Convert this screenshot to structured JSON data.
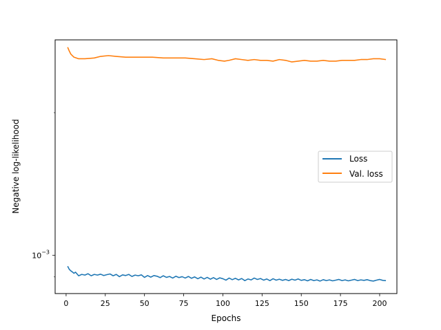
{
  "chart_data": {
    "type": "line",
    "xlabel": "Epochs",
    "ylabel": "Negative log-likelihood",
    "y_scale": "log",
    "xlim": [
      -7,
      211
    ],
    "ylim": [
      0.00083,
      0.00285
    ],
    "x_ticks": [
      0,
      25,
      50,
      75,
      100,
      125,
      150,
      175,
      200
    ],
    "y_ticks": [
      {
        "value": 0.001,
        "base": "10",
        "exponent": "−3"
      }
    ],
    "legend": {
      "location": "center-right"
    },
    "series": [
      {
        "name": "Loss",
        "color": "#1f77b4",
        "points": [
          [
            1,
            0.000948
          ],
          [
            2,
            0.000934
          ],
          [
            3,
            0.000927
          ],
          [
            4,
            0.000922
          ],
          [
            5,
            0.000916
          ],
          [
            6,
            0.000921
          ],
          [
            7,
            0.000913
          ],
          [
            8,
            0.000905
          ],
          [
            10,
            0.000911
          ],
          [
            12,
            0.000908
          ],
          [
            14,
            0.000914
          ],
          [
            16,
            0.000905
          ],
          [
            18,
            0.000911
          ],
          [
            20,
            0.000908
          ],
          [
            22,
            0.000912
          ],
          [
            24,
            0.000906
          ],
          [
            26,
            0.00091
          ],
          [
            28,
            0.000913
          ],
          [
            30,
            0.000905
          ],
          [
            32,
            0.000911
          ],
          [
            34,
            0.000901
          ],
          [
            36,
            0.000909
          ],
          [
            38,
            0.000906
          ],
          [
            40,
            0.000911
          ],
          [
            42,
            0.000902
          ],
          [
            44,
            0.000908
          ],
          [
            46,
            0.000905
          ],
          [
            48,
            0.000909
          ],
          [
            50,
            0.000898
          ],
          [
            52,
            0.000906
          ],
          [
            54,
            0.000899
          ],
          [
            56,
            0.000906
          ],
          [
            58,
            0.000903
          ],
          [
            60,
            0.000897
          ],
          [
            62,
            0.000905
          ],
          [
            64,
            0.000898
          ],
          [
            66,
            0.000902
          ],
          [
            68,
            0.000895
          ],
          [
            70,
            0.000903
          ],
          [
            72,
            0.000897
          ],
          [
            74,
            0.000901
          ],
          [
            76,
            0.000895
          ],
          [
            78,
            0.000902
          ],
          [
            80,
            0.000894
          ],
          [
            82,
            0.0009
          ],
          [
            84,
            0.000892
          ],
          [
            86,
            0.000899
          ],
          [
            88,
            0.000891
          ],
          [
            90,
            0.000898
          ],
          [
            92,
            0.00089
          ],
          [
            94,
            0.000897
          ],
          [
            96,
            0.000889
          ],
          [
            98,
            0.000896
          ],
          [
            100,
            0.000892
          ],
          [
            102,
            0.000886
          ],
          [
            104,
            0.000895
          ],
          [
            106,
            0.000888
          ],
          [
            108,
            0.000894
          ],
          [
            110,
            0.000887
          ],
          [
            112,
            0.000893
          ],
          [
            114,
            0.000884
          ],
          [
            116,
            0.000891
          ],
          [
            118,
            0.000887
          ],
          [
            120,
            0.000895
          ],
          [
            122,
            0.000889
          ],
          [
            124,
            0.000893
          ],
          [
            126,
            0.000886
          ],
          [
            128,
            0.000891
          ],
          [
            130,
            0.000884
          ],
          [
            132,
            0.000892
          ],
          [
            134,
            0.000886
          ],
          [
            136,
            0.00089
          ],
          [
            138,
            0.000885
          ],
          [
            140,
            0.000889
          ],
          [
            142,
            0.000884
          ],
          [
            144,
            0.00089
          ],
          [
            146,
            0.000886
          ],
          [
            148,
            0.000891
          ],
          [
            150,
            0.000885
          ],
          [
            152,
            0.000888
          ],
          [
            154,
            0.000883
          ],
          [
            156,
            0.000889
          ],
          [
            158,
            0.000884
          ],
          [
            160,
            0.000887
          ],
          [
            162,
            0.000882
          ],
          [
            164,
            0.000888
          ],
          [
            166,
            0.000884
          ],
          [
            168,
            0.000887
          ],
          [
            170,
            0.000883
          ],
          [
            172,
            0.000886
          ],
          [
            174,
            0.000889
          ],
          [
            176,
            0.000884
          ],
          [
            178,
            0.000887
          ],
          [
            180,
            0.000883
          ],
          [
            182,
            0.000886
          ],
          [
            184,
            0.000889
          ],
          [
            186,
            0.000884
          ],
          [
            188,
            0.000887
          ],
          [
            190,
            0.000885
          ],
          [
            192,
            0.000888
          ],
          [
            194,
            0.000884
          ],
          [
            196,
            0.000882
          ],
          [
            198,
            0.000886
          ],
          [
            200,
            0.000889
          ],
          [
            202,
            0.000885
          ],
          [
            204,
            0.000884
          ]
        ]
      },
      {
        "name": "Val. loss",
        "color": "#ff7f0e",
        "points": [
          [
            1,
            0.00275
          ],
          [
            2,
            0.0027
          ],
          [
            3,
            0.00266
          ],
          [
            5,
            0.00262
          ],
          [
            8,
            0.0026
          ],
          [
            12,
            0.0026
          ],
          [
            18,
            0.00261
          ],
          [
            22,
            0.00263
          ],
          [
            27,
            0.00264
          ],
          [
            32,
            0.00263
          ],
          [
            38,
            0.00262
          ],
          [
            45,
            0.00262
          ],
          [
            50,
            0.00262
          ],
          [
            55,
            0.00262
          ],
          [
            62,
            0.00261
          ],
          [
            70,
            0.00261
          ],
          [
            76,
            0.00261
          ],
          [
            82,
            0.0026
          ],
          [
            88,
            0.00259
          ],
          [
            93,
            0.0026
          ],
          [
            97,
            0.00258
          ],
          [
            101,
            0.00257
          ],
          [
            104,
            0.00258
          ],
          [
            108,
            0.0026
          ],
          [
            112,
            0.00259
          ],
          [
            116,
            0.00258
          ],
          [
            120,
            0.00259
          ],
          [
            124,
            0.00258
          ],
          [
            128,
            0.00258
          ],
          [
            132,
            0.00257
          ],
          [
            136,
            0.00259
          ],
          [
            140,
            0.00258
          ],
          [
            144,
            0.00256
          ],
          [
            148,
            0.00257
          ],
          [
            152,
            0.00258
          ],
          [
            156,
            0.00257
          ],
          [
            160,
            0.00257
          ],
          [
            164,
            0.00258
          ],
          [
            168,
            0.00257
          ],
          [
            172,
            0.00257
          ],
          [
            176,
            0.00258
          ],
          [
            180,
            0.00258
          ],
          [
            184,
            0.00258
          ],
          [
            188,
            0.00259
          ],
          [
            192,
            0.00259
          ],
          [
            196,
            0.0026
          ],
          [
            200,
            0.0026
          ],
          [
            204,
            0.00259
          ]
        ]
      }
    ]
  }
}
